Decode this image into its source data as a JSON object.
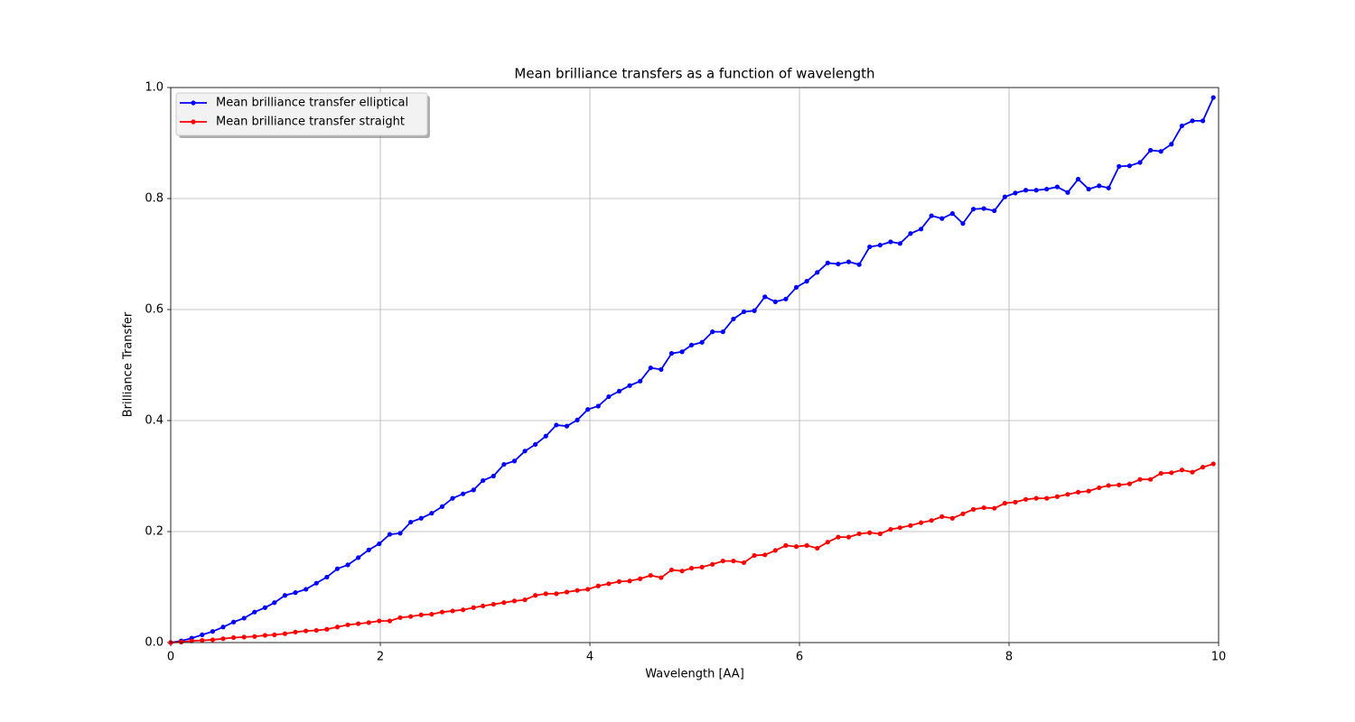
{
  "chart_data": {
    "type": "line",
    "title": "Mean brilliance transfers as a function of wavelength",
    "xlabel": "Wavelength [AA]",
    "ylabel": "Brilliance Transfer",
    "x": [
      0,
      0.1,
      0.2,
      0.3,
      0.4,
      0.5,
      0.6,
      0.7,
      0.8,
      0.9,
      0.99,
      1.09,
      1.19,
      1.29,
      1.39,
      1.49,
      1.59,
      1.69,
      1.79,
      1.89,
      1.99,
      2.09,
      2.19,
      2.29,
      2.39,
      2.49,
      2.59,
      2.69,
      2.79,
      2.89,
      2.98,
      3.08,
      3.18,
      3.28,
      3.38,
      3.48,
      3.58,
      3.68,
      3.78,
      3.88,
      3.98,
      4.08,
      4.18,
      4.28,
      4.38,
      4.48,
      4.58,
      4.68,
      4.78,
      4.88,
      4.97,
      5.07,
      5.17,
      5.27,
      5.37,
      5.47,
      5.57,
      5.67,
      5.77,
      5.87,
      5.97,
      6.07,
      6.17,
      6.27,
      6.37,
      6.47,
      6.57,
      6.67,
      6.77,
      6.87,
      6.96,
      7.06,
      7.16,
      7.26,
      7.36,
      7.46,
      7.56,
      7.66,
      7.76,
      7.86,
      7.96,
      8.06,
      8.16,
      8.26,
      8.36,
      8.46,
      8.56,
      8.66,
      8.76,
      8.86,
      8.95,
      9.05,
      9.15,
      9.25,
      9.35,
      9.45,
      9.55,
      9.65,
      9.75,
      9.85,
      9.95
    ],
    "series": [
      {
        "name": "Mean brilliance transfer elliptical",
        "color": "#0000ff",
        "values": [
          0,
          0.003,
          0.008,
          0.014,
          0.02,
          0.028,
          0.037,
          0.044,
          0.055,
          0.063,
          0.072,
          0.085,
          0.09,
          0.096,
          0.107,
          0.118,
          0.133,
          0.14,
          0.153,
          0.167,
          0.178,
          0.195,
          0.197,
          0.217,
          0.224,
          0.233,
          0.245,
          0.26,
          0.268,
          0.275,
          0.292,
          0.3,
          0.321,
          0.327,
          0.345,
          0.357,
          0.372,
          0.392,
          0.39,
          0.401,
          0.42,
          0.426,
          0.443,
          0.453,
          0.463,
          0.471,
          0.495,
          0.492,
          0.521,
          0.524,
          0.536,
          0.541,
          0.56,
          0.56,
          0.583,
          0.596,
          0.598,
          0.623,
          0.614,
          0.619,
          0.64,
          0.651,
          0.667,
          0.684,
          0.682,
          0.686,
          0.681,
          0.713,
          0.716,
          0.722,
          0.719,
          0.737,
          0.745,
          0.769,
          0.764,
          0.773,
          0.755,
          0.781,
          0.782,
          0.778,
          0.803,
          0.81,
          0.815,
          0.815,
          0.817,
          0.821,
          0.811,
          0.835,
          0.817,
          0.823,
          0.819,
          0.858,
          0.859,
          0.865,
          0.887,
          0.885,
          0.898,
          0.931,
          0.94,
          0.94,
          0.982
        ]
      },
      {
        "name": "Mean brilliance transfer straight",
        "color": "#ff0000",
        "values": [
          0,
          0.001,
          0.003,
          0.004,
          0.005,
          0.007,
          0.009,
          0.01,
          0.011,
          0.013,
          0.014,
          0.016,
          0.019,
          0.021,
          0.022,
          0.024,
          0.028,
          0.032,
          0.034,
          0.036,
          0.039,
          0.039,
          0.045,
          0.047,
          0.05,
          0.051,
          0.055,
          0.057,
          0.059,
          0.063,
          0.066,
          0.069,
          0.072,
          0.075,
          0.077,
          0.085,
          0.088,
          0.088,
          0.091,
          0.094,
          0.096,
          0.102,
          0.106,
          0.11,
          0.111,
          0.115,
          0.121,
          0.117,
          0.131,
          0.129,
          0.134,
          0.136,
          0.141,
          0.147,
          0.147,
          0.144,
          0.157,
          0.158,
          0.166,
          0.175,
          0.173,
          0.175,
          0.17,
          0.181,
          0.19,
          0.19,
          0.196,
          0.198,
          0.196,
          0.204,
          0.207,
          0.211,
          0.216,
          0.22,
          0.227,
          0.224,
          0.232,
          0.24,
          0.243,
          0.242,
          0.251,
          0.253,
          0.258,
          0.26,
          0.26,
          0.263,
          0.267,
          0.271,
          0.273,
          0.279,
          0.283,
          0.284,
          0.286,
          0.294,
          0.294,
          0.305,
          0.306,
          0.311,
          0.307,
          0.316,
          0.322
        ]
      }
    ],
    "xlim": [
      0,
      10
    ],
    "xticks": [
      0,
      2,
      4,
      6,
      8,
      10
    ],
    "ylim": [
      0,
      1
    ],
    "yticks": [
      {
        "value": 0,
        "label": "0.0"
      },
      {
        "value": 0.2,
        "label": "0.2"
      },
      {
        "value": 0.4,
        "label": "0.4"
      },
      {
        "value": 0.6,
        "label": "0.6"
      },
      {
        "value": 0.8,
        "label": "0.8"
      },
      {
        "value": 1,
        "label": "1.0"
      }
    ],
    "grid": true,
    "legend": "upper left"
  }
}
